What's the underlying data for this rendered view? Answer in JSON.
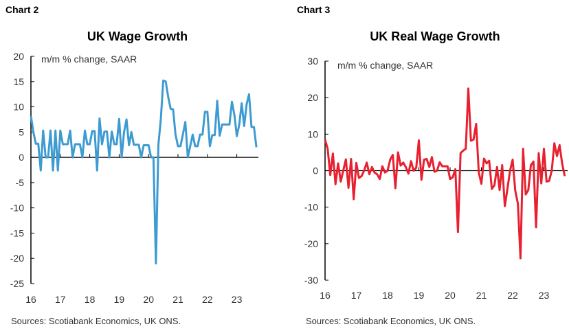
{
  "charts_meta": [
    {
      "label": "Chart 2",
      "source": "Sources: Scotiabank Economics, UK ONS."
    },
    {
      "label": "Chart 3",
      "source": "Sources: Scotiabank Economics, UK ONS."
    }
  ],
  "chart_data": [
    {
      "type": "line",
      "title": "UK Wage Growth",
      "ylabel": "m/m % change, SAAR",
      "color": "#3d9bd1",
      "ylim": [
        -25,
        20
      ],
      "yticks": [
        20,
        15,
        10,
        5,
        0,
        -5,
        -10,
        -15,
        -20,
        -25
      ],
      "xticks": [
        "16",
        "17",
        "18",
        "19",
        "20",
        "21",
        "22",
        "23"
      ],
      "x_start": "2016-01",
      "frequency": "monthly",
      "grid": false,
      "values": [
        8.2,
        5,
        2.7,
        2.7,
        -2.6,
        5.3,
        0,
        0,
        5.3,
        -2.6,
        5.3,
        -2.6,
        5.3,
        2.6,
        2.6,
        2.6,
        5.3,
        0,
        2.6,
        2.6,
        2.6,
        0,
        5.3,
        2.6,
        2.6,
        5.2,
        5.2,
        -2.6,
        7.7,
        2.6,
        5.1,
        5.1,
        0,
        5.1,
        2.6,
        2.6,
        7.6,
        0,
        5,
        7.5,
        2.4,
        5,
        2.5,
        2.5,
        2.5,
        0,
        2.4,
        2.4,
        2.4,
        0,
        0,
        -21,
        2.5,
        7.5,
        15.2,
        15,
        12,
        9.6,
        9.5,
        4.5,
        2.2,
        2.2,
        4.5,
        7,
        0,
        2.2,
        4.5,
        2.2,
        2.2,
        4.5,
        4.5,
        9,
        9,
        2.2,
        4.4,
        4.4,
        11.2,
        4.3,
        6.5,
        6.5,
        6.5,
        6.5,
        11,
        8.5,
        4.2,
        6.5,
        10.7,
        6.2,
        10.5,
        12.5,
        6,
        6,
        2
      ]
    },
    {
      "type": "line",
      "title": "UK Real Wage Growth",
      "ylabel": "m/m % change, SAAR",
      "color": "#e8202f",
      "ylim": [
        -30,
        30
      ],
      "yticks": [
        30,
        20,
        10,
        0,
        -10,
        -20,
        -30
      ],
      "xticks": [
        "16",
        "17",
        "18",
        "19",
        "20",
        "21",
        "22",
        "23"
      ],
      "x_start": "2016-01",
      "frequency": "monthly",
      "grid": false,
      "values": [
        8.5,
        6,
        -1.2,
        4.7,
        -3.7,
        2,
        -3,
        0,
        3.1,
        -4.7,
        3.2,
        -7.8,
        2.1,
        -2,
        -1.5,
        0,
        2.2,
        -1,
        1,
        -0.5,
        -1,
        -2.3,
        1.2,
        -0.5,
        0,
        3,
        4.3,
        -4.8,
        5,
        1.4,
        2.2,
        1,
        -0.8,
        2.6,
        0,
        0.8,
        8.3,
        -2.5,
        3,
        3.2,
        1,
        3.7,
        -0.3,
        0,
        2.3,
        1.2,
        1.2,
        1.2,
        -2.3,
        -1.8,
        0.4,
        -16.8,
        4.8,
        5.5,
        6,
        22.5,
        8.2,
        8.5,
        12.8,
        -0.5,
        -3.6,
        3.3,
        2,
        2.7,
        -5,
        -4,
        1,
        -5.3,
        1.5,
        -9.7,
        -5,
        0,
        3,
        -5.5,
        -9,
        -24,
        6,
        -6.5,
        -5.3,
        1.5,
        2.5,
        -15.5,
        4.8,
        -3.5,
        6,
        -3,
        -2.8,
        0,
        7.5,
        4,
        7,
        2,
        -1.5
      ]
    }
  ]
}
